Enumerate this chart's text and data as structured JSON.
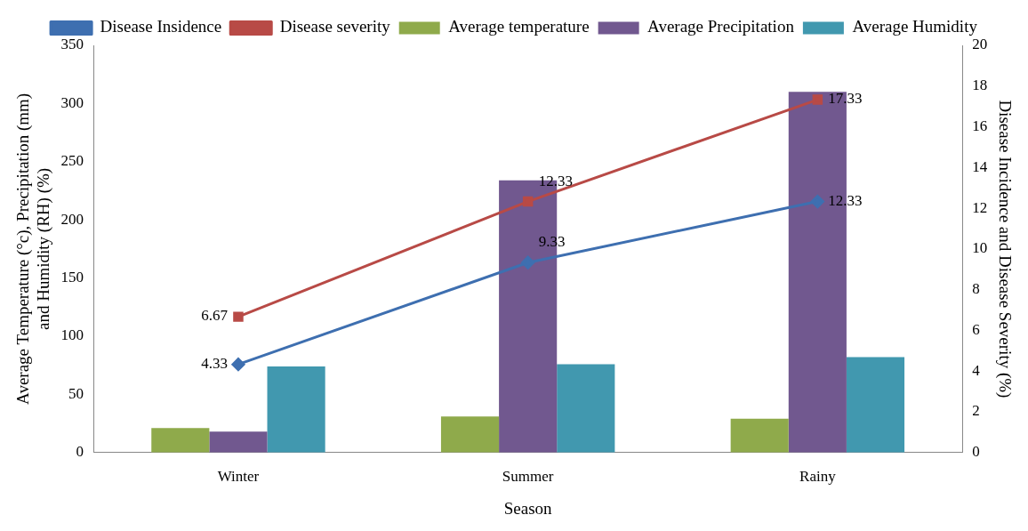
{
  "chart_data": {
    "type": "bar",
    "xlabel": "Season",
    "ylabel": "Average Temperature (°c), Precipitation (mm)\nand Humidity (RH) (%)",
    "y2label": "Disease Incidence and Disease Severity (%)",
    "categories": [
      "Winter",
      "Summer",
      "Rainy"
    ],
    "series": [
      {
        "name": "Average temperature",
        "color": "#8faa4b",
        "values": [
          21,
          31,
          29
        ]
      },
      {
        "name": "Average Precipitation",
        "color": "#71588f",
        "values": [
          18,
          234,
          310
        ]
      },
      {
        "name": "Average Humidity",
        "color": "#4198af",
        "values": [
          74,
          76,
          82
        ]
      },
      {
        "name": "Disease Insidence",
        "type": "line",
        "axis": "y2",
        "marker": "diamond",
        "color": "#3e6fb0",
        "values": [
          4.33,
          9.33,
          12.33
        ],
        "value_labels": [
          "4.33",
          "9.33",
          "12.33"
        ]
      },
      {
        "name": "Disease severity",
        "type": "line",
        "axis": "y2",
        "marker": "square",
        "color": "#b84a46",
        "values": [
          6.67,
          12.33,
          17.33
        ],
        "value_labels": [
          "6.67",
          "12.33",
          "17.33"
        ]
      }
    ],
    "ylim": [
      0,
      350
    ],
    "yticks": [
      0,
      50,
      100,
      150,
      200,
      250,
      300,
      350
    ],
    "y2lim": [
      0,
      20
    ],
    "y2ticks": [
      0,
      2,
      4,
      6,
      8,
      10,
      12,
      14,
      16,
      18,
      20
    ],
    "grid": false,
    "legend": "top"
  }
}
